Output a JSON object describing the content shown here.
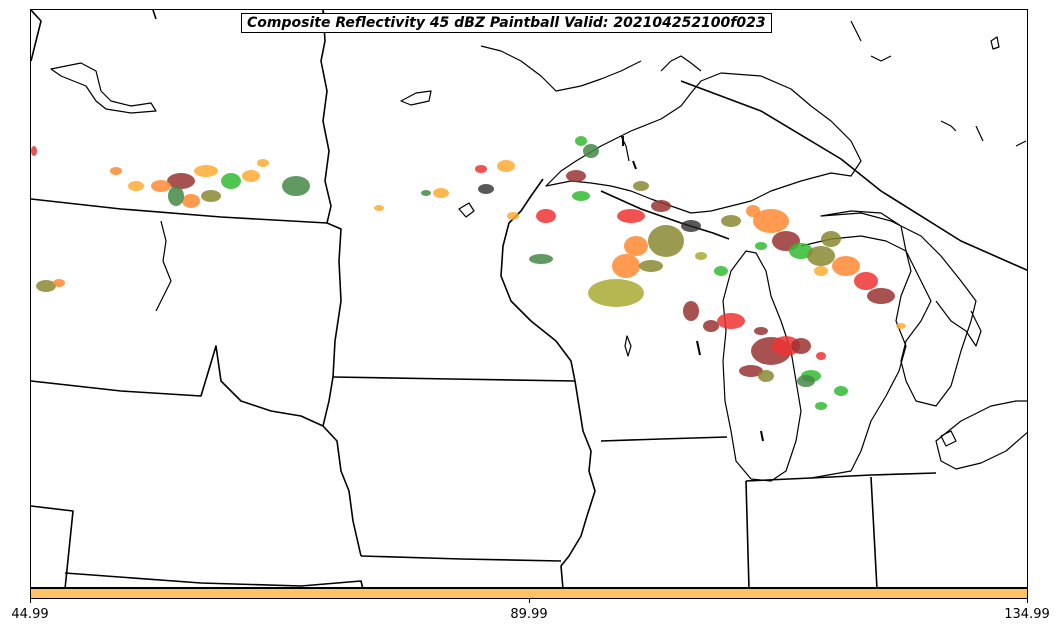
{
  "title": "Composite Reflectivity 45 dBZ Paintball Valid: 202104252100f023",
  "colorbar": {
    "color": "#ffc266",
    "ticks": [
      "44.99",
      "89.99",
      "134.99"
    ]
  },
  "member_colors": [
    "#ee3333",
    "#ff8833",
    "#ffaa33",
    "#33bb33",
    "#448844",
    "#888833",
    "#aaaa33",
    "#993333",
    "#222222"
  ]
}
